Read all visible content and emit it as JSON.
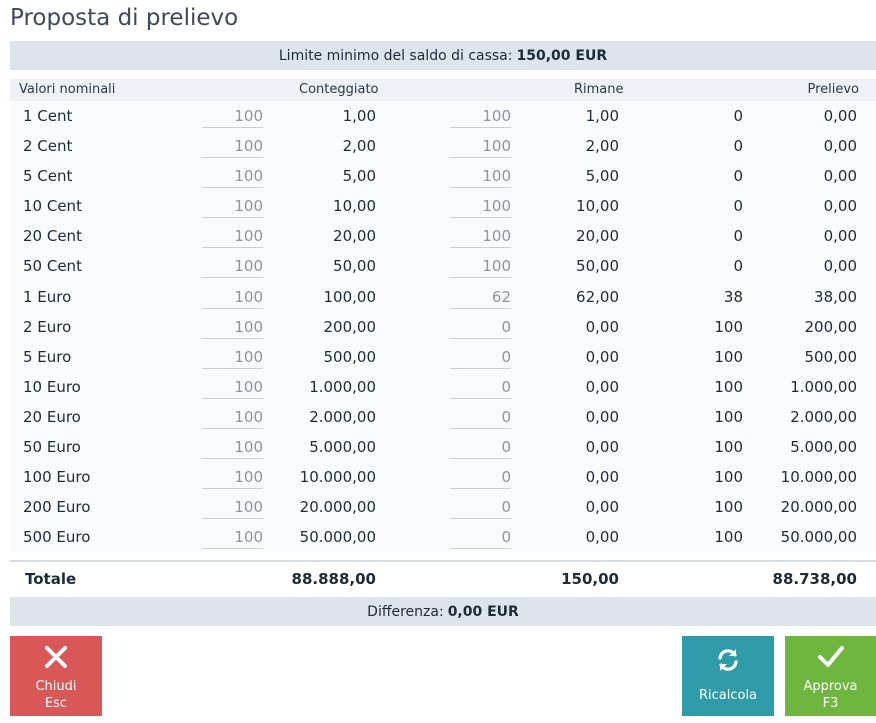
{
  "title": "Proposta di prelievo",
  "limit": {
    "label": "Limite minimo del saldo di cassa:",
    "value": "150,00 EUR"
  },
  "columns": {
    "name": "Valori nominali",
    "counted": "Conteggiato",
    "remaining": "Rimane",
    "withdrawal": "Prelievo"
  },
  "rows": [
    {
      "name": "1 Cent",
      "in1": "100",
      "val1": "1,00",
      "in2": "100",
      "val2": "1,00",
      "qty": "0",
      "wd": "0,00"
    },
    {
      "name": "2 Cent",
      "in1": "100",
      "val1": "2,00",
      "in2": "100",
      "val2": "2,00",
      "qty": "0",
      "wd": "0,00"
    },
    {
      "name": "5 Cent",
      "in1": "100",
      "val1": "5,00",
      "in2": "100",
      "val2": "5,00",
      "qty": "0",
      "wd": "0,00"
    },
    {
      "name": "10 Cent",
      "in1": "100",
      "val1": "10,00",
      "in2": "100",
      "val2": "10,00",
      "qty": "0",
      "wd": "0,00"
    },
    {
      "name": "20 Cent",
      "in1": "100",
      "val1": "20,00",
      "in2": "100",
      "val2": "20,00",
      "qty": "0",
      "wd": "0,00"
    },
    {
      "name": "50 Cent",
      "in1": "100",
      "val1": "50,00",
      "in2": "100",
      "val2": "50,00",
      "qty": "0",
      "wd": "0,00"
    },
    {
      "name": "1 Euro",
      "in1": "100",
      "val1": "100,00",
      "in2": "62",
      "val2": "62,00",
      "qty": "38",
      "wd": "38,00"
    },
    {
      "name": "2 Euro",
      "in1": "100",
      "val1": "200,00",
      "in2": "0",
      "val2": "0,00",
      "qty": "100",
      "wd": "200,00"
    },
    {
      "name": "5 Euro",
      "in1": "100",
      "val1": "500,00",
      "in2": "0",
      "val2": "0,00",
      "qty": "100",
      "wd": "500,00"
    },
    {
      "name": "10 Euro",
      "in1": "100",
      "val1": "1.000,00",
      "in2": "0",
      "val2": "0,00",
      "qty": "100",
      "wd": "1.000,00"
    },
    {
      "name": "20 Euro",
      "in1": "100",
      "val1": "2.000,00",
      "in2": "0",
      "val2": "0,00",
      "qty": "100",
      "wd": "2.000,00"
    },
    {
      "name": "50 Euro",
      "in1": "100",
      "val1": "5.000,00",
      "in2": "0",
      "val2": "0,00",
      "qty": "100",
      "wd": "5.000,00"
    },
    {
      "name": "100 Euro",
      "in1": "100",
      "val1": "10.000,00",
      "in2": "0",
      "val2": "0,00",
      "qty": "100",
      "wd": "10.000,00"
    },
    {
      "name": "200 Euro",
      "in1": "100",
      "val1": "20.000,00",
      "in2": "0",
      "val2": "0,00",
      "qty": "100",
      "wd": "20.000,00"
    },
    {
      "name": "500 Euro",
      "in1": "100",
      "val1": "50.000,00",
      "in2": "0",
      "val2": "0,00",
      "qty": "100",
      "wd": "50.000,00"
    }
  ],
  "total": {
    "label": "Totale",
    "counted": "88.888,00",
    "remaining": "150,00",
    "withdrawal": "88.738,00"
  },
  "difference": {
    "label": "Differenza:",
    "value": "0,00 EUR"
  },
  "buttons": {
    "close": {
      "label": "Chiudi",
      "key": "Esc",
      "icon": "close-icon",
      "color": "#d95757"
    },
    "recalc": {
      "label": "Ricalcola",
      "icon": "refresh-icon",
      "color": "#2f9aa8"
    },
    "approve": {
      "label": "Approva",
      "key": "F3",
      "icon": "check-icon",
      "color": "#6fb63f"
    }
  }
}
